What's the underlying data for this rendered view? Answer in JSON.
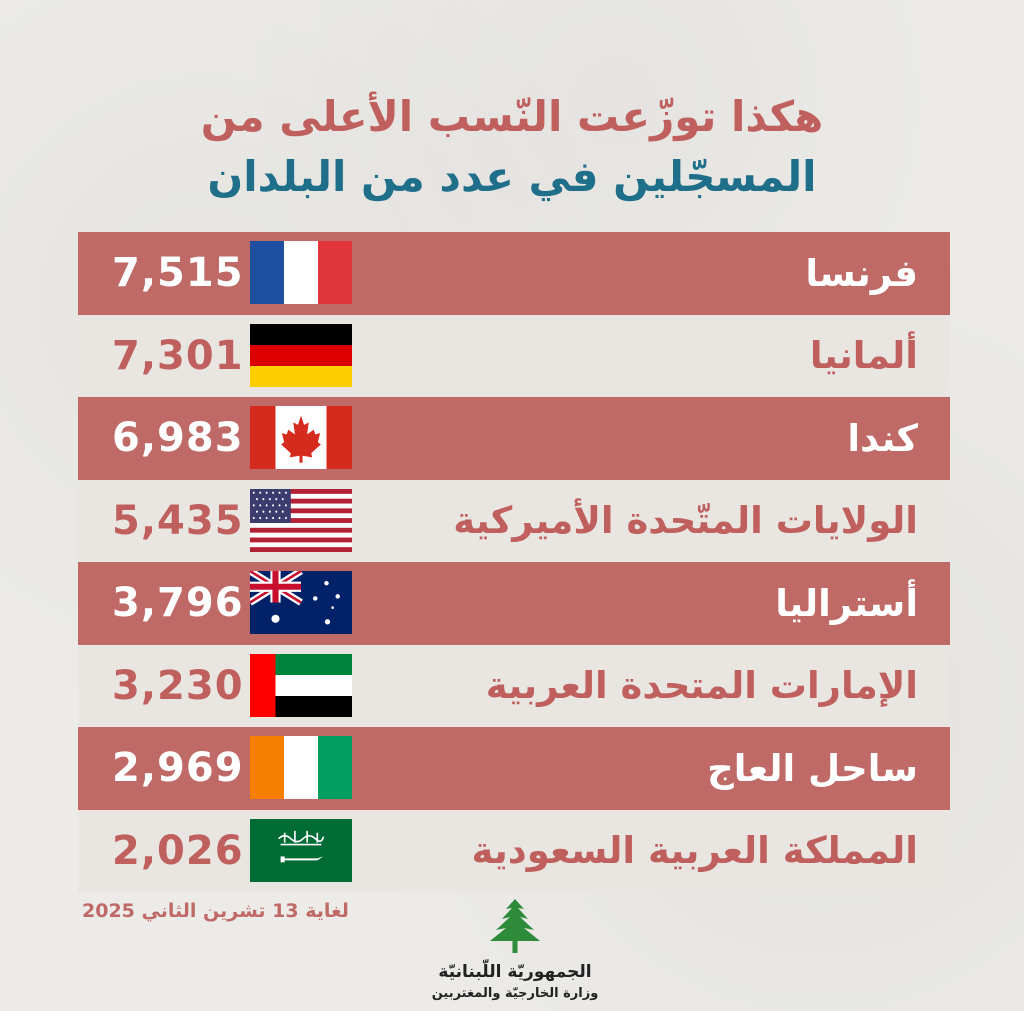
{
  "header": {
    "title_line1": "هكذا توزّعت النّسب الأعلى من",
    "title_line2": "المسجّلين في عدد من البلدان"
  },
  "rows": [
    {
      "country": "فرنسا",
      "value": "7,515",
      "flag": "france-flag-icon"
    },
    {
      "country": "ألمانيا",
      "value": "7,301",
      "flag": "germany-flag-icon"
    },
    {
      "country": "كندا",
      "value": "6,983",
      "flag": "canada-flag-icon"
    },
    {
      "country": "الولايات المتّحدة الأميركية",
      "value": "5,435",
      "flag": "usa-flag-icon"
    },
    {
      "country": "أستراليا",
      "value": "3,796",
      "flag": "australia-flag-icon"
    },
    {
      "country": "الإمارات المتحدة العربية",
      "value": "3,230",
      "flag": "uae-flag-icon"
    },
    {
      "country": "ساحل العاج",
      "value": "2,969",
      "flag": "ivory-coast-flag-icon"
    },
    {
      "country": "المملكة العربية السعودية",
      "value": "2,026",
      "flag": "saudi-arabia-flag-icon"
    }
  ],
  "footer": {
    "date": "لغاية 13 تشرين الثاني 2025",
    "org_name": "الجمهوريّة اللّبنانيّة",
    "ministry": "وزارة الخارجيّة والمغتربين",
    "logo_icon": "cedar-tree-icon"
  },
  "colors": {
    "dark_row": "#c06a67",
    "light_row": "#e9e5e1",
    "title_red": "#c0605e",
    "title_blue": "#1f6f8b"
  }
}
